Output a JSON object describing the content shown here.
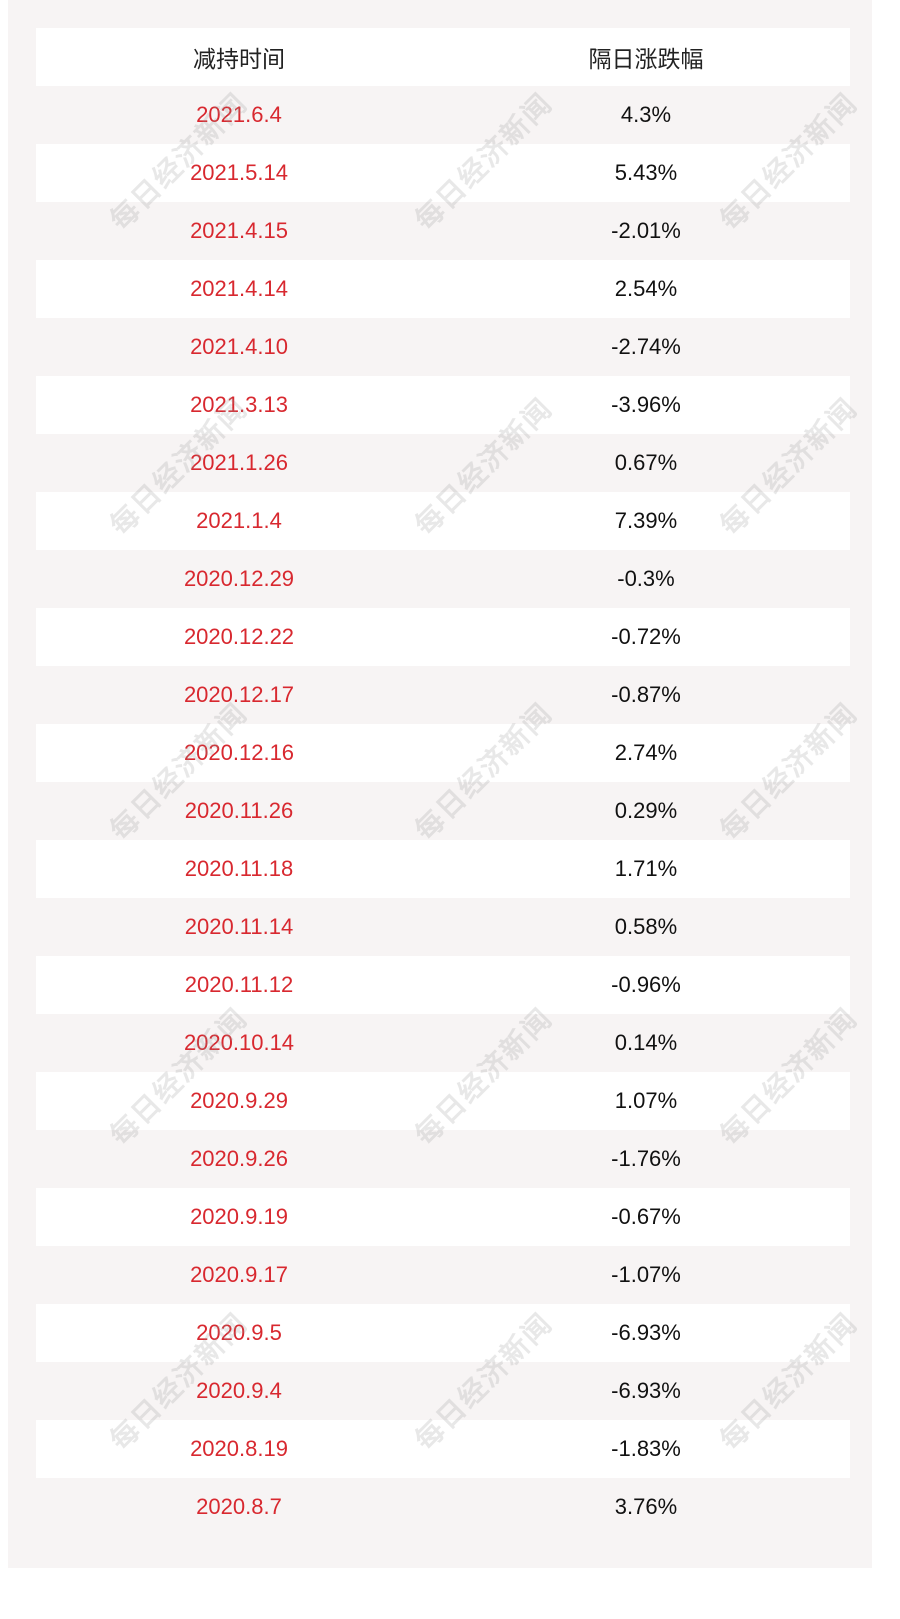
{
  "watermark": "每日经济新闻",
  "table": {
    "headers": [
      "减持时间",
      "隔日涨跌幅"
    ],
    "rows": [
      [
        "2021.6.4",
        "4.3%"
      ],
      [
        "2021.5.14",
        "5.43%"
      ],
      [
        "2021.4.15",
        "-2.01%"
      ],
      [
        "2021.4.14",
        "2.54%"
      ],
      [
        "2021.4.10",
        "-2.74%"
      ],
      [
        "2021.3.13",
        "-3.96%"
      ],
      [
        "2021.1.26",
        "0.67%"
      ],
      [
        "2021.1.4",
        "7.39%"
      ],
      [
        "2020.12.29",
        "-0.3%"
      ],
      [
        "2020.12.22",
        "-0.72%"
      ],
      [
        "2020.12.17",
        "-0.87%"
      ],
      [
        "2020.12.16",
        "2.74%"
      ],
      [
        "2020.11.26",
        "0.29%"
      ],
      [
        "2020.11.18",
        "1.71%"
      ],
      [
        "2020.11.14",
        "0.58%"
      ],
      [
        "2020.11.12",
        "-0.96%"
      ],
      [
        "2020.10.14",
        "0.14%"
      ],
      [
        "2020.9.29",
        "1.07%"
      ],
      [
        "2020.9.26",
        "-1.76%"
      ],
      [
        "2020.9.19",
        "-0.67%"
      ],
      [
        "2020.9.17",
        "-1.07%"
      ],
      [
        "2020.9.5",
        "-6.93%"
      ],
      [
        "2020.9.4",
        "-6.93%"
      ],
      [
        "2020.8.19",
        "-1.83%"
      ],
      [
        "2020.8.7",
        "3.76%"
      ]
    ]
  },
  "colors": {
    "date_text": "#d8282f",
    "value_text": "#111111",
    "stripe": "#f7f4f4",
    "row": "#ffffff"
  }
}
